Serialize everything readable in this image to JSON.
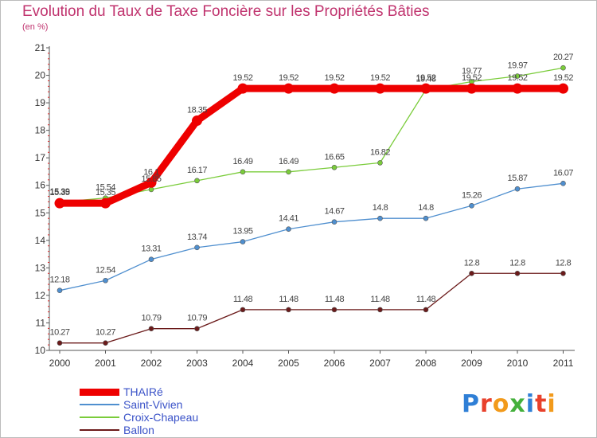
{
  "chart_data": {
    "type": "line",
    "title": "Evolution du Taux de Taxe Foncière sur les Propriétés Bâties",
    "subtitle": "(en %)",
    "xlabel": "",
    "ylabel": "",
    "x": [
      "2000",
      "2001",
      "2002",
      "2003",
      "2004",
      "2005",
      "2006",
      "2007",
      "2008",
      "2009",
      "2010",
      "2011"
    ],
    "ylim": [
      10,
      21
    ],
    "yticks": [
      "10",
      "11",
      "12",
      "13",
      "14",
      "15",
      "16",
      "17",
      "18",
      "19",
      "20",
      "21"
    ],
    "grid": false,
    "legend_position": "bottom-left",
    "series": [
      {
        "name": "THAIRé",
        "color": "#ee0000",
        "values": [
          15.35,
          15.35,
          16.1,
          18.35,
          19.52,
          19.52,
          19.52,
          19.52,
          19.52,
          19.52,
          19.52,
          19.52
        ],
        "labels": [
          "15.35",
          "15.35",
          "16.1",
          "18.35",
          "19.52",
          "19.52",
          "19.52",
          "19.52",
          "19.52",
          "19.52",
          "19.52",
          "19.52"
        ]
      },
      {
        "name": "Saint-Vivien",
        "color": "#4f8fcf",
        "values": [
          12.18,
          12.54,
          13.31,
          13.74,
          13.95,
          14.41,
          14.67,
          14.8,
          14.8,
          15.26,
          15.87,
          16.07
        ],
        "labels": [
          "12.18",
          "12.54",
          "13.31",
          "13.74",
          "13.95",
          "14.41",
          "14.67",
          "14.8",
          "14.8",
          "15.26",
          "15.87",
          "16.07"
        ]
      },
      {
        "name": "Croix-Chapeau",
        "color": "#7acc3a",
        "values": [
          15.39,
          15.54,
          15.85,
          16.17,
          16.49,
          16.49,
          16.65,
          16.82,
          19.48,
          19.77,
          19.97,
          20.27
        ],
        "labels": [
          "15.39",
          "15.54",
          "15.85",
          "16.17",
          "16.49",
          "16.49",
          "16.65",
          "16.82",
          "19.48",
          "19.77",
          "19.97",
          "20.27"
        ]
      },
      {
        "name": "Ballon",
        "color": "#6b1a1a",
        "values": [
          10.27,
          10.27,
          10.79,
          10.79,
          11.48,
          11.48,
          11.48,
          11.48,
          11.48,
          12.8,
          12.8,
          12.8
        ],
        "labels": [
          "10.27",
          "10.27",
          "10.79",
          "10.79",
          "11.48",
          "11.48",
          "11.48",
          "11.48",
          "11.48",
          "12.8",
          "12.8",
          "12.8"
        ]
      }
    ]
  },
  "logo": {
    "text": "Proxiti",
    "colors": [
      "#2f7fd6",
      "#e8412c",
      "#f29a1b",
      "#44b03c",
      "#2f7fd6",
      "#e8412c",
      "#f29a1b"
    ]
  }
}
